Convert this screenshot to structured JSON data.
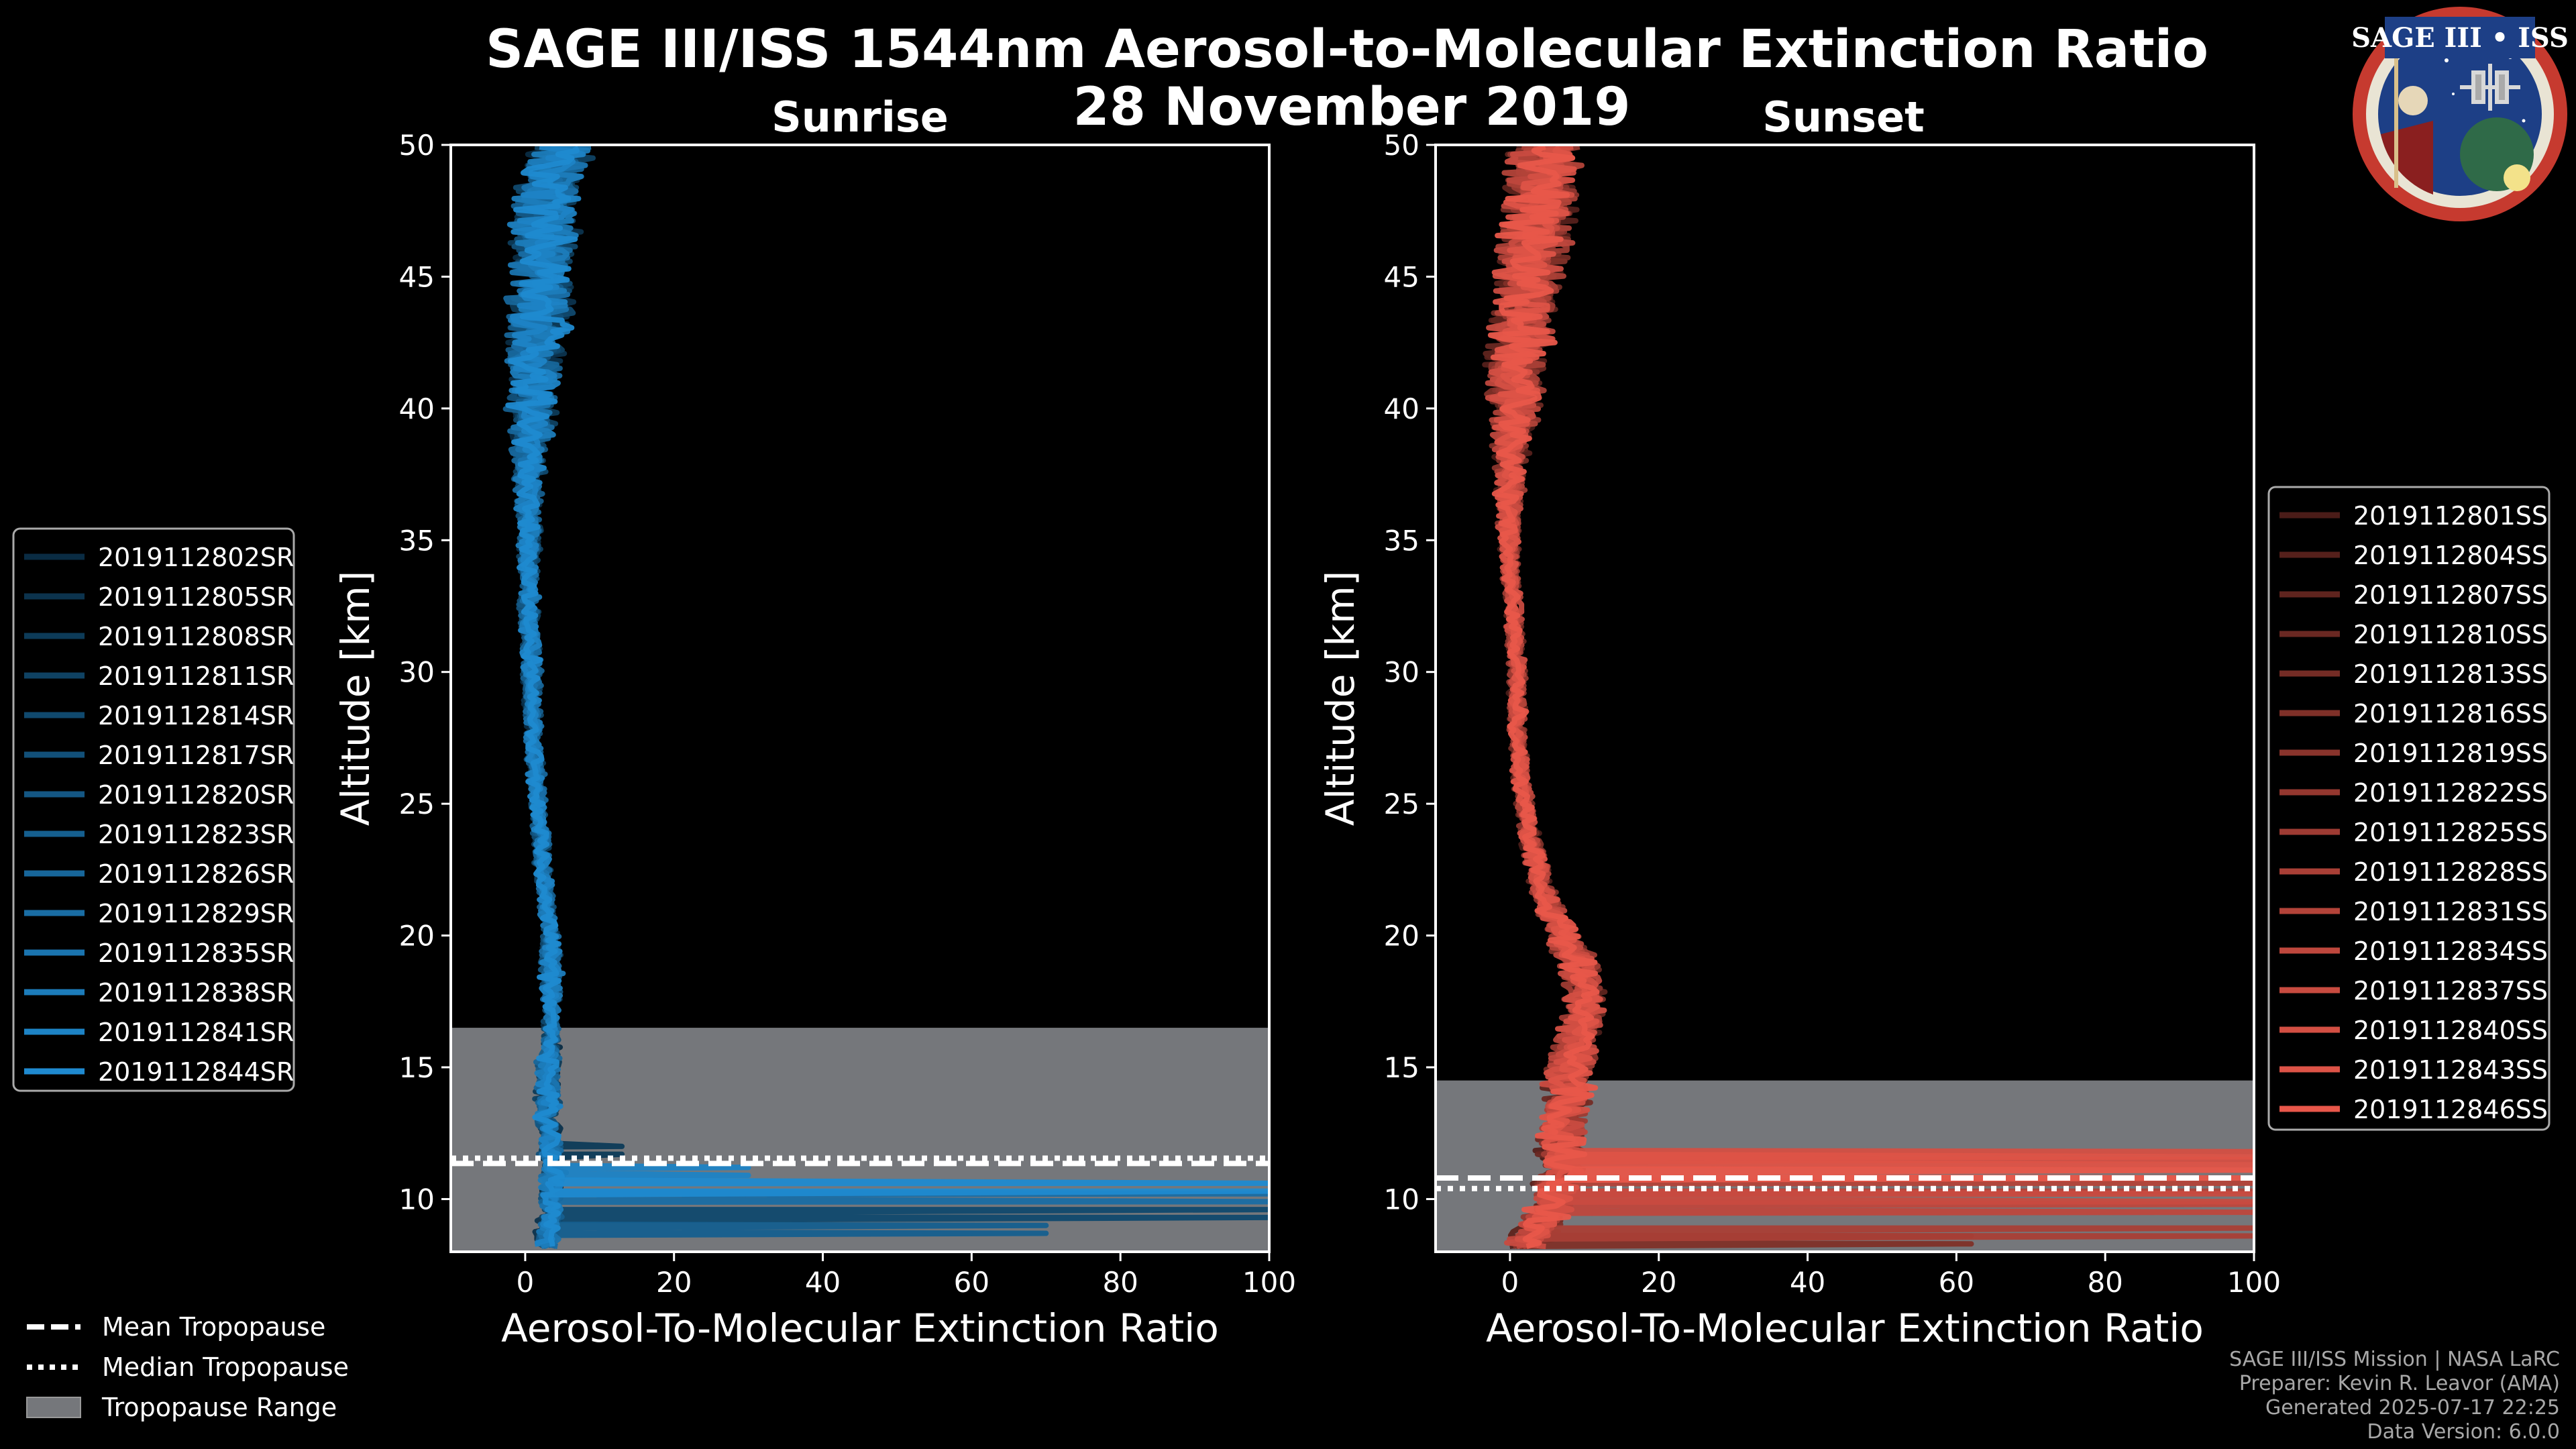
{
  "figure": {
    "title": "SAGE III/ISS 1544nm Aerosol-to-Molecular Extinction Ratio",
    "date": "28 November 2019",
    "logo_text": "SAGE III • ISS",
    "credits": [
      "SAGE III/ISS Mission | NASA LaRC",
      "Preparer: Kevin R. Leavor (AMA)",
      "Generated 2025-07-17 22:25",
      "Data Version: 6.0.0"
    ],
    "tropopause_legend": [
      {
        "label": "Mean Tropopause",
        "style": "dashed"
      },
      {
        "label": "Median Tropopause",
        "style": "dotted"
      },
      {
        "label": "Tropopause Range",
        "style": "patch"
      }
    ]
  },
  "chart_data": [
    {
      "type": "line",
      "panel": "sunrise",
      "title": "Sunrise",
      "xlabel": "Aerosol-To-Molecular Extinction Ratio",
      "ylabel": "Altitude [km]",
      "xlim": [
        -10,
        100
      ],
      "ylim": [
        8,
        50
      ],
      "xticks": [
        0,
        20,
        40,
        60,
        80,
        100
      ],
      "yticks": [
        10,
        15,
        20,
        25,
        30,
        35,
        40,
        45,
        50
      ],
      "legend_position": "left",
      "color": "#1f8ad0",
      "tropopause": {
        "mean": 11.35,
        "median": 11.55,
        "range": [
          8,
          16.5
        ]
      },
      "profiles_shape": {
        "altitudes": [
          8.5,
          9.0,
          9.5,
          10.0,
          10.5,
          11.0,
          11.5,
          12.0,
          13.0,
          14.0,
          15.0,
          16.0,
          17.0,
          18.0,
          19.0,
          20.0,
          22.0,
          24.0,
          26.0,
          28.0,
          30.0,
          32.0,
          34.0,
          36.0,
          38.0,
          40.0,
          42.0,
          44.0,
          46.0,
          48.0,
          50.0
        ],
        "median": [
          3,
          3,
          3.5,
          3.5,
          3.5,
          4,
          3.5,
          3.5,
          3,
          3,
          3,
          3.5,
          3.5,
          3.5,
          3.5,
          3.5,
          2.5,
          2,
          1.5,
          1,
          1,
          0.5,
          0.5,
          0.5,
          0.5,
          1,
          1.5,
          2,
          2.5,
          3,
          5
        ],
        "spread": [
          1.5,
          1.5,
          1.5,
          1.5,
          1.5,
          1.5,
          1.5,
          1.5,
          1.5,
          1.5,
          1.5,
          1.0,
          1.0,
          1.2,
          1.5,
          1.0,
          1.0,
          1.0,
          1.0,
          1.0,
          1.2,
          1.2,
          1.2,
          1.5,
          2.0,
          3.0,
          3.5,
          4.0,
          4.0,
          4.0,
          4.0
        ]
      },
      "excursions": [
        {
          "profile": 9,
          "alt": 10.2,
          "value": 100
        },
        {
          "profile": 4,
          "alt": 9.6,
          "value": 100
        },
        {
          "profile": 12,
          "alt": 11.2,
          "value": 30
        },
        {
          "profile": 2,
          "alt": 12.0,
          "value": 13
        },
        {
          "profile": 7,
          "alt": 9.0,
          "value": 70
        },
        {
          "profile": 13,
          "alt": 10.6,
          "value": 100
        }
      ],
      "series": [
        {
          "name": "2019112802SR"
        },
        {
          "name": "2019112805SR"
        },
        {
          "name": "2019112808SR"
        },
        {
          "name": "2019112811SR"
        },
        {
          "name": "2019112814SR"
        },
        {
          "name": "2019112817SR"
        },
        {
          "name": "2019112820SR"
        },
        {
          "name": "2019112823SR"
        },
        {
          "name": "2019112826SR"
        },
        {
          "name": "2019112829SR"
        },
        {
          "name": "2019112835SR"
        },
        {
          "name": "2019112838SR"
        },
        {
          "name": "2019112841SR"
        },
        {
          "name": "2019112844SR"
        }
      ]
    },
    {
      "type": "line",
      "panel": "sunset",
      "title": "Sunset",
      "xlabel": "Aerosol-To-Molecular Extinction Ratio",
      "ylabel": "Altitude [km]",
      "xlim": [
        -10,
        100
      ],
      "ylim": [
        8,
        50
      ],
      "xticks": [
        0,
        20,
        40,
        60,
        80,
        100
      ],
      "yticks": [
        10,
        15,
        20,
        25,
        30,
        35,
        40,
        45,
        50
      ],
      "legend_position": "right",
      "color": "#e8574a",
      "tropopause": {
        "mean": 10.8,
        "median": 10.4,
        "range": [
          8,
          14.5
        ]
      },
      "profiles_shape": {
        "altitudes": [
          8.5,
          9.0,
          9.5,
          10.0,
          10.5,
          11.0,
          11.5,
          12.0,
          13.0,
          14.0,
          15.0,
          16.0,
          17.0,
          18.0,
          19.0,
          20.0,
          22.0,
          24.0,
          26.0,
          28.0,
          30.0,
          32.0,
          34.0,
          36.0,
          38.0,
          40.0,
          42.0,
          44.0,
          46.0,
          48.0,
          50.0
        ],
        "median": [
          3,
          4,
          5,
          6,
          6,
          7,
          7,
          7,
          7,
          8,
          8,
          9,
          10,
          10,
          9,
          7,
          4,
          2.5,
          1.5,
          1,
          1,
          0.5,
          0,
          0,
          0,
          0.5,
          1,
          2,
          3,
          4,
          5
        ],
        "spread": [
          3,
          3,
          3,
          3,
          3,
          3,
          3,
          3,
          3,
          3,
          3,
          2.5,
          2.5,
          2.5,
          2.5,
          2.0,
          1.5,
          1.2,
          1.0,
          1.0,
          1.0,
          1.0,
          1.0,
          1.5,
          2.0,
          3.0,
          4.0,
          4.0,
          4.5,
          4.5,
          4.5
        ]
      },
      "excursions": [
        {
          "profile": 13,
          "alt": 11.8,
          "value": 100
        },
        {
          "profile": 14,
          "alt": 11.6,
          "value": 100
        },
        {
          "profile": 12,
          "alt": 10.2,
          "value": 100
        },
        {
          "profile": 11,
          "alt": 9.8,
          "value": 100
        },
        {
          "profile": 10,
          "alt": 10.6,
          "value": 100
        },
        {
          "profile": 9,
          "alt": 8.9,
          "value": 100
        },
        {
          "profile": 15,
          "alt": 11.1,
          "value": 100
        },
        {
          "profile": 5,
          "alt": 8.6,
          "value": 62
        }
      ],
      "series": [
        {
          "name": "2019112801SS"
        },
        {
          "name": "2019112804SS"
        },
        {
          "name": "2019112807SS"
        },
        {
          "name": "2019112810SS"
        },
        {
          "name": "2019112813SS"
        },
        {
          "name": "2019112816SS"
        },
        {
          "name": "2019112819SS"
        },
        {
          "name": "2019112822SS"
        },
        {
          "name": "2019112825SS"
        },
        {
          "name": "2019112828SS"
        },
        {
          "name": "2019112831SS"
        },
        {
          "name": "2019112834SS"
        },
        {
          "name": "2019112837SS"
        },
        {
          "name": "2019112840SS"
        },
        {
          "name": "2019112843SS"
        },
        {
          "name": "2019112846SS"
        }
      ]
    }
  ]
}
